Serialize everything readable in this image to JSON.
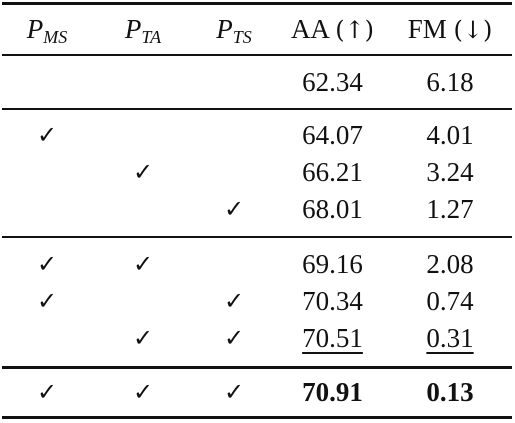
{
  "header": {
    "col1": {
      "symbol": "P",
      "sub": "MS"
    },
    "col2": {
      "symbol": "P",
      "sub": "TA"
    },
    "col3": {
      "symbol": "P",
      "sub": "TS"
    },
    "col4": {
      "label": "AA",
      "arrow": "(↑)"
    },
    "col5": {
      "label": "FM",
      "arrow": "(↓)"
    }
  },
  "check_mark": "✓",
  "rows": [
    {
      "ms": false,
      "ta": false,
      "ts": false,
      "aa": "62.34",
      "fm": "6.18",
      "style": "normal"
    },
    {
      "ms": true,
      "ta": false,
      "ts": false,
      "aa": "64.07",
      "fm": "4.01",
      "style": "normal"
    },
    {
      "ms": false,
      "ta": true,
      "ts": false,
      "aa": "66.21",
      "fm": "3.24",
      "style": "normal"
    },
    {
      "ms": false,
      "ta": false,
      "ts": true,
      "aa": "68.01",
      "fm": "1.27",
      "style": "normal"
    },
    {
      "ms": true,
      "ta": true,
      "ts": false,
      "aa": "69.16",
      "fm": "2.08",
      "style": "normal"
    },
    {
      "ms": true,
      "ta": false,
      "ts": true,
      "aa": "70.34",
      "fm": "0.74",
      "style": "normal"
    },
    {
      "ms": false,
      "ta": true,
      "ts": true,
      "aa": "70.51",
      "fm": "0.31",
      "style": "underline"
    },
    {
      "ms": true,
      "ta": true,
      "ts": true,
      "aa": "70.91",
      "fm": "0.13",
      "style": "bold"
    }
  ]
}
